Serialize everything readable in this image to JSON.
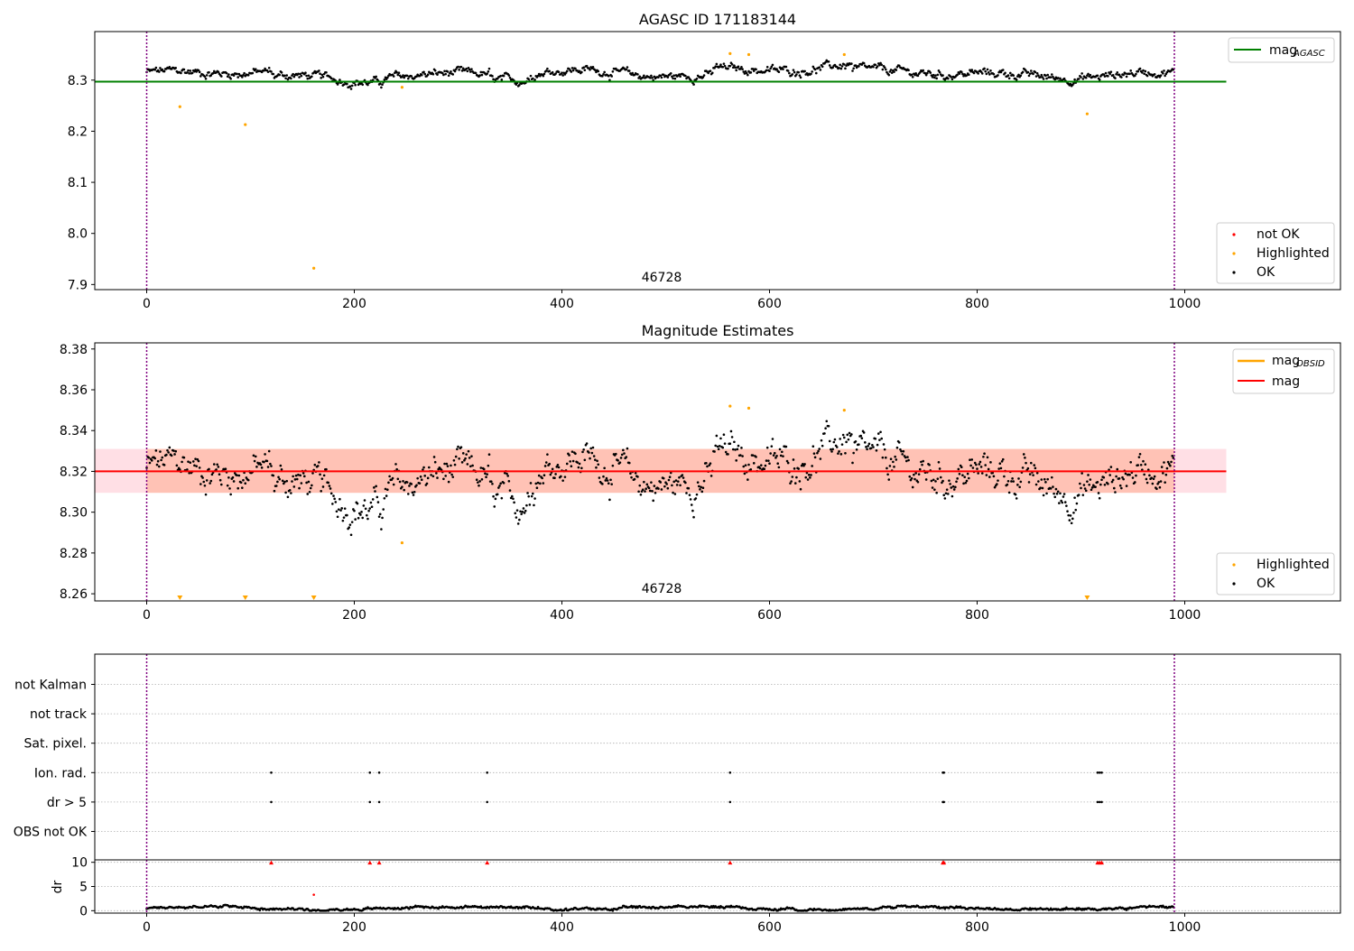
{
  "figure": {
    "top_title": "AGASC ID 171183144",
    "mid_title": "Magnitude Estimates",
    "obsid_label": "46728"
  },
  "chart_data": [
    {
      "type": "scatter",
      "name_key": "agasc_panel",
      "title": "AGASC ID 171183144",
      "xlim": [
        -50,
        1150
      ],
      "ylim": [
        7.89,
        8.395
      ],
      "x_ticks": [
        0,
        200,
        400,
        600,
        800,
        1000
      ],
      "y_ticks": [
        7.9,
        8.0,
        8.1,
        8.2,
        8.3
      ],
      "y_tick_labels": [
        "7.9",
        "8.0",
        "8.1",
        "8.2",
        "8.3"
      ],
      "x_tick_labels": [
        "0",
        "200",
        "400",
        "600",
        "800",
        "1000"
      ],
      "mag_agasc": 8.297,
      "vlines": [
        0,
        990
      ],
      "annotation": {
        "text": "46728",
        "x": 495
      },
      "highlighted": [
        [
          32,
          8.248
        ],
        [
          95,
          8.213
        ],
        [
          161,
          7.932
        ],
        [
          246,
          8.286
        ],
        [
          906,
          8.234
        ],
        [
          562,
          8.352
        ],
        [
          580,
          8.35
        ],
        [
          672,
          8.35
        ]
      ],
      "ok_profile": {
        "x_start": 0,
        "x_end": 990,
        "n": 990
      },
      "legend": {
        "top_right": [
          {
            "label": "mag",
            "sub": "AGASC",
            "color": "#008000"
          }
        ],
        "bottom_right": [
          {
            "label": "not OK",
            "color": "#ff0000"
          },
          {
            "label": "Highlighted",
            "color": "#ffa500"
          },
          {
            "label": "OK",
            "color": "#000000"
          }
        ]
      }
    },
    {
      "type": "scatter",
      "name_key": "mag_panel",
      "title": "Magnitude Estimates",
      "xlim": [
        -50,
        1150
      ],
      "ylim": [
        8.2565,
        8.383
      ],
      "x_ticks": [
        0,
        200,
        400,
        600,
        800,
        1000
      ],
      "x_tick_labels": [
        "0",
        "200",
        "400",
        "600",
        "800",
        "1000"
      ],
      "y_ticks": [
        8.26,
        8.28,
        8.3,
        8.32,
        8.34,
        8.36,
        8.38
      ],
      "y_tick_labels": [
        "8.26",
        "8.28",
        "8.30",
        "8.32",
        "8.34",
        "8.36",
        "8.38"
      ],
      "mag": 8.32,
      "mag_band": [
        8.3095,
        8.331
      ],
      "mag_obsid_band": [
        8.3095,
        8.331
      ],
      "band_x": [
        -50,
        1040
      ],
      "obsid_band_x": [
        0,
        990
      ],
      "vlines": [
        0,
        990
      ],
      "annotation": {
        "text": "46728",
        "x": 495
      },
      "highlighted": [
        [
          246,
          8.285
        ],
        [
          562,
          8.352
        ],
        [
          580,
          8.351
        ],
        [
          672,
          8.35
        ]
      ],
      "offscale_markers": [
        32,
        95,
        161,
        906
      ],
      "legend": {
        "top_right": [
          {
            "label": "mag",
            "sub": "OBSID",
            "color": "#ffa500"
          },
          {
            "label": "mag",
            "sub": "",
            "color": "#ff0000"
          }
        ],
        "bottom_right": [
          {
            "label": "Highlighted",
            "color": "#ffa500"
          },
          {
            "label": "OK",
            "color": "#000000"
          }
        ]
      }
    },
    {
      "type": "scatter",
      "name_key": "flags_panel",
      "xlim": [
        -50,
        1150
      ],
      "categories": [
        "not Kalman",
        "not track",
        "Sat. pixel.",
        "Ion. rad.",
        "dr > 5",
        "OBS not OK"
      ],
      "flag_points": {
        "Ion. rad.": [
          120,
          215,
          224,
          328,
          562,
          767,
          768,
          916,
          918,
          920
        ],
        "dr > 5": [
          120,
          215,
          224,
          328,
          562,
          767,
          768,
          916,
          918,
          920
        ]
      },
      "vlines": [
        0,
        990
      ]
    },
    {
      "type": "scatter",
      "name_key": "dr_panel",
      "xlim": [
        -50,
        1150
      ],
      "ylim": [
        -0.5,
        10.5
      ],
      "ylabel": "dr",
      "y_ticks": [
        0,
        5,
        10
      ],
      "y_tick_labels": [
        "0",
        "5",
        "10"
      ],
      "x_ticks": [
        0,
        200,
        400,
        600,
        800,
        1000
      ],
      "x_tick_labels": [
        "0",
        "200",
        "400",
        "600",
        "800",
        "1000"
      ],
      "clipped_markers": [
        120,
        215,
        224,
        328,
        562,
        767,
        768,
        916,
        918,
        920
      ],
      "highlighted": [
        [
          161,
          3.3
        ]
      ],
      "vlines": [
        0,
        990
      ]
    }
  ],
  "colors": {
    "ok": "#000000",
    "highlighted": "#ffa500",
    "not_ok": "#ff0000",
    "agasc_line": "#008000",
    "mag_line": "#ff0000",
    "mag_band": "#ffc0cb",
    "obsid_band": "#ffa07a",
    "vline": "#800080",
    "grid": "#b0b0b0"
  }
}
